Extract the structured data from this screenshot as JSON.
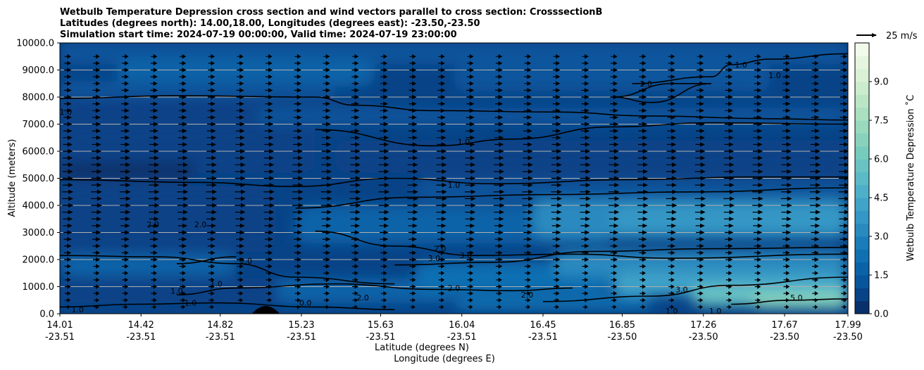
{
  "chart_data": {
    "type": "contour",
    "title_lines": [
      "Wetbulb Temperature Depression cross section and wind vectors parallel to cross section: CrosssectionB",
      "Latitudes (degrees north): 14.00,18.00, Longitudes (degrees east): -23.50,-23.50",
      "Simulation start time: 2024-07-19 00:00:00, Valid time: 2024-07-19 23:00:00"
    ],
    "ylabel": "Altitude (meters)",
    "xlabel_lat": "Latitude (degrees N)",
    "xlabel_lon": "Longitude (degrees E)",
    "ylim": [
      0,
      10000
    ],
    "xlim": [
      14.01,
      17.99
    ],
    "y_ticks": [
      {
        "value": 0,
        "label": "0.0"
      },
      {
        "value": 1000,
        "label": "1000.0"
      },
      {
        "value": 2000,
        "label": "2000.0"
      },
      {
        "value": 3000,
        "label": "3000.0"
      },
      {
        "value": 4000,
        "label": "4000.0"
      },
      {
        "value": 5000,
        "label": "5000.0"
      },
      {
        "value": 6000,
        "label": "6000.0"
      },
      {
        "value": 7000,
        "label": "7000.0"
      },
      {
        "value": 8000,
        "label": "8000.0"
      },
      {
        "value": 9000,
        "label": "9000.0"
      },
      {
        "value": 10000,
        "label": "10000.0"
      }
    ],
    "x_ticks": [
      {
        "lat": 14.01,
        "lat_label": "14.01",
        "lon_label": "-23.51"
      },
      {
        "lat": 14.42,
        "lat_label": "14.42",
        "lon_label": "-23.51"
      },
      {
        "lat": 14.82,
        "lat_label": "14.82",
        "lon_label": "-23.51"
      },
      {
        "lat": 15.23,
        "lat_label": "15.23",
        "lon_label": "-23.51"
      },
      {
        "lat": 15.63,
        "lat_label": "15.63",
        "lon_label": "-23.51"
      },
      {
        "lat": 16.04,
        "lat_label": "16.04",
        "lon_label": "-23.51"
      },
      {
        "lat": 16.45,
        "lat_label": "16.45",
        "lon_label": "-23.51"
      },
      {
        "lat": 16.85,
        "lat_label": "16.85",
        "lon_label": "-23.50"
      },
      {
        "lat": 17.26,
        "lat_label": "17.26",
        "lon_label": "-23.50"
      },
      {
        "lat": 17.67,
        "lat_label": "17.67",
        "lon_label": "-23.50"
      },
      {
        "lat": 17.99,
        "lat_label": "17.99",
        "lon_label": "-23.50"
      }
    ],
    "grid_y": true,
    "colorbar": {
      "label": "Wetbulb Temperature Depression ˚C",
      "range": [
        0,
        10.5
      ],
      "level_step": 0.5,
      "ticks": [
        {
          "value": 0.0,
          "label": "0.0"
        },
        {
          "value": 1.5,
          "label": "1.5"
        },
        {
          "value": 3.0,
          "label": "3.0"
        },
        {
          "value": 4.5,
          "label": "4.5"
        },
        {
          "value": 6.0,
          "label": "6.0"
        },
        {
          "value": 7.5,
          "label": "7.5"
        },
        {
          "value": 9.0,
          "label": "9.0"
        }
      ],
      "colors": [
        "#08306b",
        "#084387",
        "#08559c",
        "#0a63a8",
        "#1170b2",
        "#1a7db9",
        "#2a8abf",
        "#3597c5",
        "#41a3c8",
        "#4eafc9",
        "#5bbac6",
        "#69c3c2",
        "#77cbbd",
        "#88d2bc",
        "#99d9bd",
        "#aadfc0",
        "#bbe6c6",
        "#cbeccd",
        "#daf1d6",
        "#e6f5df",
        "#f2faec"
      ]
    },
    "quiver_key": {
      "label": "25 m/s",
      "speed": 25
    },
    "wind": {
      "direction": "parallel to cross section (toward increasing latitude)",
      "rows_altitude_m": [
        250,
        500,
        750,
        1000,
        1250,
        1500,
        1750,
        2000,
        2250,
        2500,
        2750,
        3000,
        3250,
        3500,
        3750,
        4000,
        4250,
        4500,
        4750,
        5000,
        5250,
        5500,
        5750,
        6000,
        6250,
        6500,
        6750,
        7000,
        7250,
        7500,
        7750,
        8000,
        8250,
        8500,
        8750,
        9000,
        9250,
        9500
      ],
      "row_speed_ms": [
        2,
        2.5,
        3,
        3,
        3,
        3,
        3.5,
        4,
        4,
        4.5,
        5,
        5.5,
        6,
        6.5,
        7,
        7.5,
        7.5,
        7.5,
        7,
        7,
        7,
        7,
        6.5,
        6.5,
        6,
        6,
        5.5,
        5.5,
        5,
        5,
        4.5,
        4.5,
        4.5,
        4,
        4,
        4,
        3.5,
        3.5
      ]
    },
    "contours": [
      {
        "level": "1.0",
        "points": [
          [
            14.01,
            7950
          ],
          [
            14.6,
            8050
          ],
          [
            15.3,
            8000
          ],
          [
            15.5,
            7700
          ],
          [
            15.9,
            7500
          ],
          [
            16.5,
            7450
          ],
          [
            17.0,
            7300
          ],
          [
            17.6,
            7200
          ],
          [
            17.99,
            7150
          ]
        ]
      },
      {
        "level": "1.0",
        "points": [
          [
            15.3,
            6800
          ],
          [
            15.9,
            6200
          ],
          [
            16.3,
            6450
          ],
          [
            16.8,
            6900
          ],
          [
            17.3,
            7050
          ],
          [
            17.99,
            7000
          ]
        ]
      },
      {
        "level": "1.0",
        "points": [
          [
            14.01,
            4950
          ],
          [
            14.7,
            4850
          ],
          [
            15.2,
            4700
          ],
          [
            15.7,
            5000
          ],
          [
            16.2,
            4800
          ],
          [
            16.9,
            4950
          ],
          [
            17.5,
            5050
          ],
          [
            17.99,
            5050
          ]
        ]
      },
      {
        "level": "1.0",
        "points": [
          [
            15.2,
            3900
          ],
          [
            15.8,
            4300
          ],
          [
            16.5,
            4400
          ],
          [
            17.2,
            4500
          ],
          [
            17.99,
            4650
          ]
        ]
      },
      {
        "level": "1.0",
        "points": [
          [
            16.9,
            8500
          ],
          [
            17.3,
            8750
          ],
          [
            17.4,
            9200
          ],
          [
            17.6,
            9400
          ],
          [
            17.99,
            9600
          ]
        ]
      },
      {
        "level": "2.0",
        "points": [
          [
            16.8,
            8000
          ],
          [
            17.1,
            8500
          ],
          [
            17.3,
            8500
          ],
          [
            17.0,
            7800
          ],
          [
            16.8,
            8000
          ]
        ]
      },
      {
        "level": "2.0",
        "points": [
          [
            14.01,
            2150
          ],
          [
            14.5,
            2100
          ],
          [
            14.9,
            1850
          ],
          [
            15.2,
            1350
          ],
          [
            15.7,
            1100
          ]
        ]
      },
      {
        "level": "2.0",
        "points": [
          [
            14.6,
            1850
          ],
          [
            14.9,
            2100
          ]
        ]
      },
      {
        "level": "2.0",
        "points": [
          [
            15.3,
            3050
          ],
          [
            15.7,
            2500
          ],
          [
            16.1,
            2150
          ],
          [
            16.6,
            2200
          ],
          [
            17.1,
            2050
          ],
          [
            17.99,
            2200
          ]
        ]
      },
      {
        "level": "3.0",
        "points": [
          [
            15.7,
            1800
          ],
          [
            16.2,
            1900
          ],
          [
            16.7,
            2300
          ],
          [
            17.3,
            2400
          ],
          [
            17.99,
            2450
          ]
        ]
      },
      {
        "level": "3.0",
        "points": [
          [
            16.45,
            450
          ],
          [
            17.0,
            650
          ],
          [
            17.4,
            1050
          ],
          [
            17.99,
            1350
          ]
        ]
      },
      {
        "level": "2.0",
        "points": [
          [
            14.6,
            700
          ],
          [
            14.9,
            950
          ],
          [
            15.4,
            1100
          ],
          [
            15.9,
            900
          ],
          [
            16.3,
            850
          ],
          [
            16.6,
            950
          ]
        ]
      },
      {
        "level": "1.0",
        "points": [
          [
            14.01,
            250
          ],
          [
            14.4,
            350
          ],
          [
            14.8,
            400
          ],
          [
            15.3,
            250
          ],
          [
            15.7,
            150
          ]
        ]
      },
      {
        "level": "5.0",
        "points": [
          [
            17.4,
            350
          ],
          [
            17.7,
            500
          ],
          [
            17.99,
            550
          ]
        ]
      }
    ],
    "contour_labels": [
      {
        "text": "1.0",
        "lat": 16.05,
        "alt": 6350
      },
      {
        "text": "1.0",
        "lat": 16.0,
        "alt": 4750
      },
      {
        "text": "1.0",
        "lat": 17.45,
        "alt": 9200
      },
      {
        "text": "1.0",
        "lat": 17.62,
        "alt": 8800
      },
      {
        "text": "2.0",
        "lat": 16.97,
        "alt": 8500
      },
      {
        "text": "1.0",
        "lat": 14.04,
        "alt": 7450
      },
      {
        "text": "2.0",
        "lat": 14.48,
        "alt": 3300
      },
      {
        "text": "2.0",
        "lat": 14.72,
        "alt": 3300
      },
      {
        "text": "2.0",
        "lat": 14.95,
        "alt": 1950
      },
      {
        "text": "2.0",
        "lat": 15.93,
        "alt": 2400
      },
      {
        "text": "3.0",
        "lat": 15.9,
        "alt": 2050
      },
      {
        "text": "3.0",
        "lat": 16.06,
        "alt": 2150
      },
      {
        "text": "2.0",
        "lat": 16.0,
        "alt": 950
      },
      {
        "text": "2.0",
        "lat": 15.54,
        "alt": 600
      },
      {
        "text": "2.0",
        "lat": 16.37,
        "alt": 700
      },
      {
        "text": "3.0",
        "lat": 17.15,
        "alt": 900
      },
      {
        "text": "5.0",
        "lat": 17.73,
        "alt": 600
      },
      {
        "text": "1.0",
        "lat": 14.6,
        "alt": 850
      },
      {
        "text": "1.0",
        "lat": 14.67,
        "alt": 400
      },
      {
        "text": "1.0",
        "lat": 14.8,
        "alt": 1100
      },
      {
        "text": "1.0",
        "lat": 14.1,
        "alt": 150
      },
      {
        "text": "1.0",
        "lat": 17.1,
        "alt": 100
      },
      {
        "text": "1.0",
        "lat": 17.32,
        "alt": 100
      },
      {
        "text": "0.0",
        "lat": 15.25,
        "alt": 400
      }
    ]
  }
}
